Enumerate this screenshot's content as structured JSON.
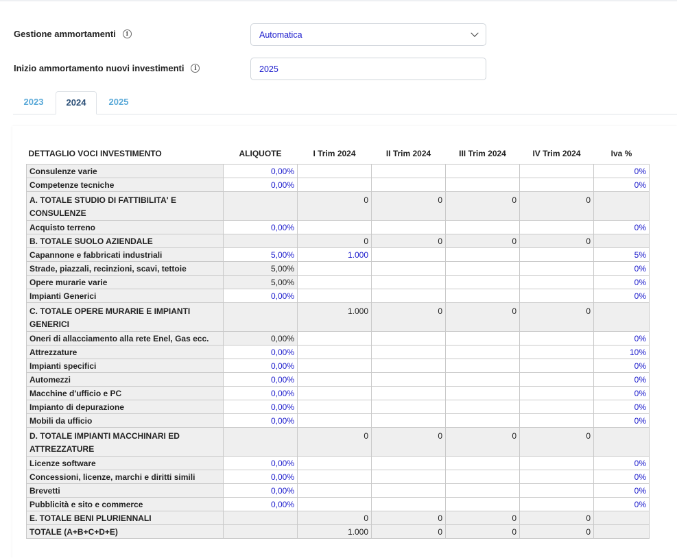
{
  "form": {
    "ammortamenti_label": "Gestione ammortamenti",
    "ammortamenti_value": "Automatica",
    "inizio_label": "Inizio ammortamento nuovi investimenti",
    "inizio_value": "2025",
    "info_glyph": "i"
  },
  "tabs": [
    {
      "label": "2023",
      "active": false
    },
    {
      "label": "2024",
      "active": true
    },
    {
      "label": "2025",
      "active": false
    }
  ],
  "table": {
    "headers": [
      "DETTAGLIO VOCI INVESTIMENTO",
      "ALIQUOTE",
      "I Trim 2024",
      "II Trim 2024",
      "III Trim 2024",
      "IV Trim 2024",
      "Iva %"
    ],
    "rows": [
      {
        "name": "Consulenze varie",
        "type": "item",
        "aliquota": "0,00%",
        "aliq_edit": true,
        "t1": "",
        "t2": "",
        "t3": "",
        "t4": "",
        "iva": "0%"
      },
      {
        "name": "Competenze tecniche",
        "type": "item",
        "aliquota": "0,00%",
        "aliq_edit": true,
        "t1": "",
        "t2": "",
        "t3": "",
        "t4": "",
        "iva": "0%"
      },
      {
        "name": "A. TOTALE STUDIO DI FATTIBILITA' E CONSULENZE",
        "type": "total",
        "tall": true,
        "aliquota": "",
        "t1": "0",
        "t2": "0",
        "t3": "0",
        "t4": "0",
        "iva": ""
      },
      {
        "name": "Acquisto terreno",
        "type": "item",
        "aliquota": "0,00%",
        "aliq_edit": true,
        "t1": "",
        "t2": "",
        "t3": "",
        "t4": "",
        "iva": "0%"
      },
      {
        "name": "B. TOTALE SUOLO AZIENDALE",
        "type": "total",
        "aliquota": "",
        "t1": "0",
        "t2": "0",
        "t3": "0",
        "t4": "0",
        "iva": ""
      },
      {
        "name": "Capannone e fabbricati industriali",
        "type": "item",
        "aliquota": "5,00%",
        "aliq_edit": true,
        "t1": "1.000",
        "t2": "",
        "t3": "",
        "t4": "",
        "iva": "5%"
      },
      {
        "name": "Strade, piazzali, recinzioni, scavi, tettoie",
        "type": "item",
        "aliquota": "5,00%",
        "aliq_edit": false,
        "t1": "",
        "t2": "",
        "t3": "",
        "t4": "",
        "iva": "0%"
      },
      {
        "name": "Opere murarie varie",
        "type": "item",
        "aliquota": "5,00%",
        "aliq_edit": false,
        "t1": "",
        "t2": "",
        "t3": "",
        "t4": "",
        "iva": "0%"
      },
      {
        "name": "Impianti Generici",
        "type": "item",
        "aliquota": "0,00%",
        "aliq_edit": true,
        "t1": "",
        "t2": "",
        "t3": "",
        "t4": "",
        "iva": "0%"
      },
      {
        "name": "C. TOTALE OPERE MURARIE E IMPIANTI GENERICI",
        "type": "total",
        "tall": true,
        "aliquota": "",
        "t1": "1.000",
        "t2": "0",
        "t3": "0",
        "t4": "0",
        "iva": ""
      },
      {
        "name": "Oneri di allacciamento alla rete Enel, Gas ecc.",
        "type": "item",
        "aliquota": "0,00%",
        "aliq_edit": false,
        "t1": "",
        "t2": "",
        "t3": "",
        "t4": "",
        "iva": "0%"
      },
      {
        "name": "Attrezzature",
        "type": "item",
        "aliquota": "0,00%",
        "aliq_edit": true,
        "t1": "",
        "t2": "",
        "t3": "",
        "t4": "",
        "iva": "10%"
      },
      {
        "name": "Impianti specifici",
        "type": "item",
        "aliquota": "0,00%",
        "aliq_edit": true,
        "t1": "",
        "t2": "",
        "t3": "",
        "t4": "",
        "iva": "0%"
      },
      {
        "name": "Automezzi",
        "type": "item",
        "aliquota": "0,00%",
        "aliq_edit": true,
        "t1": "",
        "t2": "",
        "t3": "",
        "t4": "",
        "iva": "0%"
      },
      {
        "name": "Macchine d'ufficio e PC",
        "type": "item",
        "aliquota": "0,00%",
        "aliq_edit": true,
        "t1": "",
        "t2": "",
        "t3": "",
        "t4": "",
        "iva": "0%"
      },
      {
        "name": "Impianto di depurazione",
        "type": "item",
        "aliquota": "0,00%",
        "aliq_edit": true,
        "t1": "",
        "t2": "",
        "t3": "",
        "t4": "",
        "iva": "0%"
      },
      {
        "name": "Mobili da ufficio",
        "type": "item",
        "aliquota": "0,00%",
        "aliq_edit": true,
        "t1": "",
        "t2": "",
        "t3": "",
        "t4": "",
        "iva": "0%"
      },
      {
        "name": "D. TOTALE IMPIANTI MACCHINARI ED ATTREZZATURE",
        "type": "total",
        "tall": true,
        "aliquota": "",
        "t1": "0",
        "t2": "0",
        "t3": "0",
        "t4": "0",
        "iva": ""
      },
      {
        "name": "Licenze software",
        "type": "item",
        "aliquota": "0,00%",
        "aliq_edit": true,
        "t1": "",
        "t2": "",
        "t3": "",
        "t4": "",
        "iva": "0%"
      },
      {
        "name": "Concessioni, licenze, marchi e diritti simili",
        "type": "item",
        "aliquota": "0,00%",
        "aliq_edit": true,
        "t1": "",
        "t2": "",
        "t3": "",
        "t4": "",
        "iva": "0%"
      },
      {
        "name": "Brevetti",
        "type": "item",
        "aliquota": "0,00%",
        "aliq_edit": true,
        "t1": "",
        "t2": "",
        "t3": "",
        "t4": "",
        "iva": "0%"
      },
      {
        "name": "Pubblicità e sito e commerce",
        "type": "item",
        "aliquota": "0,00%",
        "aliq_edit": true,
        "t1": "",
        "t2": "",
        "t3": "",
        "t4": "",
        "iva": "0%"
      },
      {
        "name": "E. TOTALE BENI PLURIENNALI",
        "type": "total",
        "aliquota": "",
        "t1": "0",
        "t2": "0",
        "t3": "0",
        "t4": "0",
        "iva": ""
      },
      {
        "name": "TOTALE (A+B+C+D+E)",
        "type": "total",
        "aliquota": "",
        "t1": "1.000",
        "t2": "0",
        "t3": "0",
        "t4": "0",
        "iva": ""
      }
    ]
  }
}
